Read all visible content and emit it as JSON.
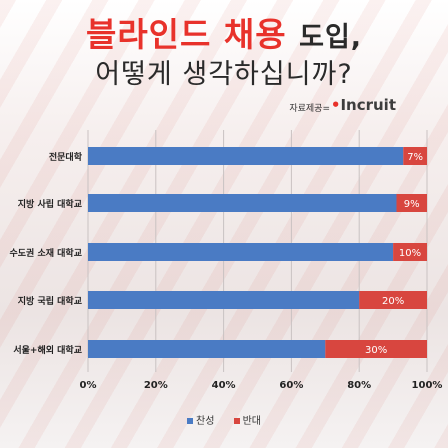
{
  "title": {
    "highlight": "블라인드 채용",
    "rest": "도입,",
    "line2": "어떻게 생각하십니까?"
  },
  "source": {
    "label": "자료제공=",
    "brand_prefix": "•",
    "brand": "Incruit"
  },
  "colors": {
    "agree": "#4a7bc4",
    "disagree": "#d8463f",
    "title_accent": "#e8322b"
  },
  "chart_data": {
    "type": "bar",
    "orientation": "horizontal",
    "stacked": true,
    "categories": [
      "전문대학",
      "지방 사립 대학교",
      "수도권 소재 대학교",
      "지방 국립 대학교",
      "서울+해외 대학교"
    ],
    "series": [
      {
        "name": "찬성",
        "values": [
          93,
          91,
          90,
          80,
          70
        ]
      },
      {
        "name": "반대",
        "values": [
          7,
          9,
          10,
          20,
          30
        ]
      }
    ],
    "data_labels": [
      "7%",
      "9%",
      "10%",
      "20%",
      "30%"
    ],
    "x_ticks": [
      "0%",
      "20%",
      "40%",
      "60%",
      "80%",
      "100%"
    ],
    "xlim": [
      0,
      100
    ],
    "legend_position": "bottom"
  }
}
